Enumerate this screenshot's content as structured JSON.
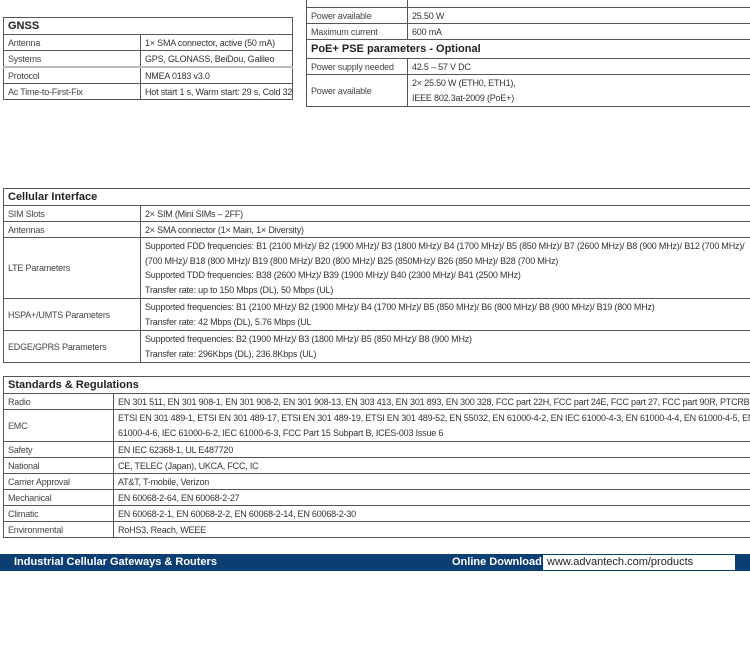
{
  "gnss": {
    "title": "GNSS",
    "rows": [
      {
        "label": "Antenna",
        "value": "1× SMA connector, active (50 mA)"
      },
      {
        "label": "Systems",
        "value": "GPS, GLONASS, BeiDou, Galileo"
      },
      {
        "label": "Protocol",
        "value": "NMEA 0183 v3.0"
      },
      {
        "label": "Ac Time-to-First-Fix",
        "value": "Hot start 1 s, Warm start: 29 s, Cold 32 s"
      }
    ]
  },
  "poe": {
    "rows_top": [
      {
        "label": "Power available",
        "value": "25.50 W"
      },
      {
        "label": "Maximum current",
        "value": "600 mA"
      }
    ],
    "pse_title": "PoE+ PSE parameters - Optional",
    "rows_pse": [
      {
        "label": "Power supply needed",
        "value": "42.5 – 57 V DC"
      },
      {
        "label": "Power available",
        "lines": [
          "2× 25.50 W (ETH0, ETH1),",
          "IEEE 802.3at-2009 (PoE+)"
        ]
      }
    ]
  },
  "cellular": {
    "title": "Cellular Interface",
    "rows": [
      {
        "label": "SIM Slots",
        "lines": [
          "2× SIM (Mini SIMs – 2FF)"
        ]
      },
      {
        "label": "Antennas",
        "lines": [
          "2× SMA connector (1× Main, 1× Diversity)"
        ]
      },
      {
        "label": "LTE Parameters",
        "lines": [
          "Supported FDD frequencies: B1 (2100 MHz)/ B2 (1900 MHz)/ B3 (1800 MHz)/ B4 (1700 MHz)/ B5 (850 MHz)/ B7 (2600 MHz)/ B8 (900 MHz)/ B12 (700 MHz)/",
          "(700 MHz)/ B18 (800 MHz)/ B19 (800 MHz)/ B20 (800 MHz)/ B25 (850MHz)/ B26 (850 MHz)/ B28 (700 MHz)",
          "Supported TDD frequencies: B38 (2600 MHz)/ B39 (1900 MHz)/ B40 (2300 MHz)/ B41 (2500 MHz)",
          "Transfer rate: up to 150 Mbps (DL), 50 Mbps (UL)"
        ]
      },
      {
        "label": "HSPA+/UMTS Parameters",
        "lines": [
          "Supported frequencies: B1 (2100 MHz)/ B2 (1900 MHz)/ B4 (1700 MHz)/ B5 (850 MHz)/ B6 (800 MHz)/ B8 (900 MHz)/ B19 (800 MHz)",
          "Transfer rate: 42 Mbps (DL), 5.76 Mbps (UL"
        ]
      },
      {
        "label": "EDGE/GPRS Parameters",
        "lines": [
          "Supported frequencies: B2 (1900 MHz)/ B3 (1800 MHz)/ B5 (850 MHz)/ B8 (900 MHz)",
          "Transfer rate: 296Kbps (DL), 236.8Kbps (UL)"
        ]
      }
    ]
  },
  "standards": {
    "title": "Standards & Regulations",
    "rows": [
      {
        "label": "Radio",
        "lines": [
          "EN 301 511, EN 301 908-1, EN 301 908-2, EN 301 908-13, EN 303 413, EN 301 893, EN 300 328, FCC part 22H, FCC part 24E, FCC part 27, FCC part 90R, PTCRB"
        ]
      },
      {
        "label": "EMC",
        "lines": [
          "ETSI EN 301 489-1, ETSI EN 301 489-17, ETSI EN 301 489-19, ETSI EN 301 489-52, EN 55032, EN 61000-4-2, EN IEC 61000-4-3, EN 61000-4-4, EN 61000-4-5, EN",
          "61000-4-6, IEC 61000-6-2, IEC 61000-6-3, FCC Part 15 Subpart B, ICES-003 Issue 6"
        ]
      },
      {
        "label": "Safety",
        "lines": [
          "EN IEC 62368-1, UL E487720"
        ]
      },
      {
        "label": "National",
        "lines": [
          "CE, TELEC (Japan), UKCA, FCC, IC"
        ]
      },
      {
        "label": "Carrier Approval",
        "lines": [
          "AT&T, T-mobile, Verizon"
        ]
      },
      {
        "label": "Mechanical",
        "lines": [
          "EN 60068-2-64, EN 60068-2-27"
        ]
      },
      {
        "label": "Climatic",
        "lines": [
          "EN 60068-2-1, EN 60068-2-2, EN 60068-2-14, EN 60068-2-30"
        ]
      },
      {
        "label": "Environmental",
        "lines": [
          "RoHS3, Reach, WEEE"
        ]
      }
    ]
  },
  "footer": {
    "title": "Industrial Cellular Gateways & Routers",
    "download_label": "Online Download",
    "url": "www.advantech.com/products",
    "bg_color": "#0b3f73"
  }
}
